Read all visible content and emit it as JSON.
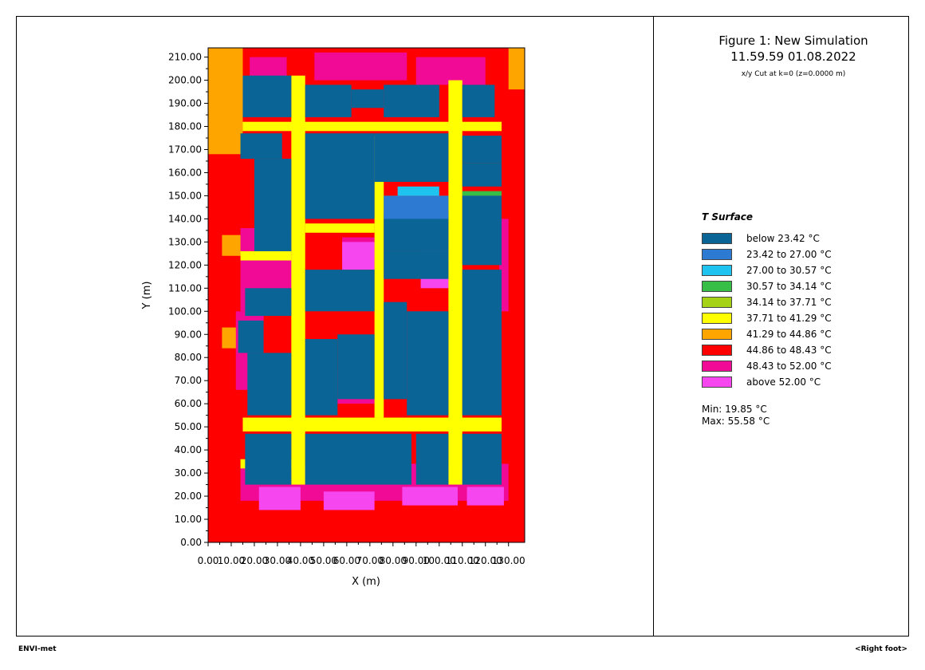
{
  "header": {
    "title": "Figure 1: New Simulation",
    "subtitle": "11.59.59 01.08.2022",
    "cut": "x/y Cut at k=0 (z=0.0000 m)"
  },
  "footer": {
    "left": "ENVI-met",
    "right": "<Right foot>"
  },
  "stats": {
    "min": "Min: 19.85 °C",
    "max": "Max: 55.58 °C"
  },
  "chart_data": {
    "type": "heatmap",
    "xlabel": "X (m)",
    "ylabel": "Y (m)",
    "xlim": [
      0,
      137
    ],
    "ylim": [
      0,
      214
    ],
    "x_ticks": [
      0,
      10,
      20,
      30,
      40,
      50,
      60,
      70,
      80,
      90,
      100,
      110,
      120,
      130
    ],
    "x_tick_labels": [
      "0.00",
      "10.00",
      "20.00",
      "30.00",
      "40.00",
      "50.00",
      "60.00",
      "70.00",
      "80.00",
      "90.00",
      "100.00",
      "110.00",
      "120.00",
      "130.00"
    ],
    "y_ticks": [
      0,
      10,
      20,
      30,
      40,
      50,
      60,
      70,
      80,
      90,
      100,
      110,
      120,
      130,
      140,
      150,
      160,
      170,
      180,
      190,
      200,
      210
    ],
    "y_tick_labels": [
      "0.00",
      "10.00",
      "20.00",
      "30.00",
      "40.00",
      "50.00",
      "60.00",
      "70.00",
      "80.00",
      "90.00",
      "100.00",
      "110.00",
      "120.00",
      "130.00",
      "140.00",
      "150.00",
      "160.00",
      "170.00",
      "180.00",
      "190.00",
      "200.00",
      "210.00"
    ],
    "legend_title": "T Surface",
    "legend_position": "right",
    "legend": [
      {
        "label": "below 23.42 °C",
        "color": "#0a6496"
      },
      {
        "label": "23.42 to 27.00 °C",
        "color": "#2d7ad2"
      },
      {
        "label": "27.00 to 30.57 °C",
        "color": "#1ec3f0"
      },
      {
        "label": "30.57 to 34.14 °C",
        "color": "#37be46"
      },
      {
        "label": "34.14 to 37.71 °C",
        "color": "#a5d214"
      },
      {
        "label": "37.71 to 41.29 °C",
        "color": "#ffff00"
      },
      {
        "label": "41.29 to 44.86 °C",
        "color": "#ffa500"
      },
      {
        "label": "44.86 to 48.43 °C",
        "color": "#ff0000"
      },
      {
        "label": "48.43 to 52.00 °C",
        "color": "#f00a96"
      },
      {
        "label": "above 52.00 °C",
        "color": "#f546f0"
      }
    ],
    "regions": [
      {
        "cls": 7,
        "x": [
          0,
          137
        ],
        "y": [
          0,
          214
        ]
      },
      {
        "cls": 6,
        "x": [
          0,
          15
        ],
        "y": [
          168,
          214
        ]
      },
      {
        "cls": 6,
        "x": [
          130,
          137
        ],
        "y": [
          196,
          214
        ]
      },
      {
        "cls": 6,
        "x": [
          6,
          15
        ],
        "y": [
          124,
          133
        ]
      },
      {
        "cls": 6,
        "x": [
          6,
          13
        ],
        "y": [
          84,
          93
        ]
      },
      {
        "cls": 8,
        "x": [
          14,
          130
        ],
        "y": [
          18,
          34
        ]
      },
      {
        "cls": 8,
        "x": [
          12,
          24
        ],
        "y": [
          66,
          100
        ]
      },
      {
        "cls": 8,
        "x": [
          14,
          38
        ],
        "y": [
          100,
          136
        ]
      },
      {
        "cls": 8,
        "x": [
          18,
          34
        ],
        "y": [
          196,
          210
        ]
      },
      {
        "cls": 8,
        "x": [
          46,
          86
        ],
        "y": [
          200,
          212
        ]
      },
      {
        "cls": 8,
        "x": [
          90,
          120
        ],
        "y": [
          198,
          210
        ]
      },
      {
        "cls": 8,
        "x": [
          126,
          130
        ],
        "y": [
          100,
          140
        ]
      },
      {
        "cls": 8,
        "x": [
          56,
          72
        ],
        "y": [
          60,
          74
        ]
      },
      {
        "cls": 8,
        "x": [
          58,
          72
        ],
        "y": [
          122,
          132
        ]
      },
      {
        "cls": 8,
        "x": [
          92,
          106
        ],
        "y": [
          122,
          136
        ]
      },
      {
        "cls": 9,
        "x": [
          22,
          40
        ],
        "y": [
          14,
          24
        ]
      },
      {
        "cls": 9,
        "x": [
          50,
          72
        ],
        "y": [
          14,
          22
        ]
      },
      {
        "cls": 9,
        "x": [
          84,
          108
        ],
        "y": [
          16,
          24
        ]
      },
      {
        "cls": 9,
        "x": [
          112,
          128
        ],
        "y": [
          16,
          24
        ]
      },
      {
        "cls": 9,
        "x": [
          58,
          72
        ],
        "y": [
          118,
          130
        ]
      },
      {
        "cls": 9,
        "x": [
          92,
          104
        ],
        "y": [
          110,
          128
        ]
      },
      {
        "cls": 5,
        "x": [
          15,
          127
        ],
        "y": [
          48,
          54
        ]
      },
      {
        "cls": 5,
        "x": [
          15,
          127
        ],
        "y": [
          178,
          182
        ]
      },
      {
        "cls": 5,
        "x": [
          36,
          42
        ],
        "y": [
          25,
          202
        ]
      },
      {
        "cls": 5,
        "x": [
          104,
          110
        ],
        "y": [
          25,
          200
        ]
      },
      {
        "cls": 5,
        "x": [
          14,
          36
        ],
        "y": [
          122,
          126
        ]
      },
      {
        "cls": 5,
        "x": [
          42,
          72
        ],
        "y": [
          134,
          138
        ]
      },
      {
        "cls": 5,
        "x": [
          14,
          36
        ],
        "y": [
          32,
          36
        ]
      },
      {
        "cls": 5,
        "x": [
          72,
          76
        ],
        "y": [
          54,
          176
        ]
      },
      {
        "cls": 4,
        "x": [
          76,
          104
        ],
        "y": [
          144,
          150
        ]
      },
      {
        "cls": 3,
        "x": [
          110,
          127
        ],
        "y": [
          150,
          152
        ]
      },
      {
        "cls": 0,
        "x": [
          16,
          36
        ],
        "y": [
          25,
          47
        ]
      },
      {
        "cls": 0,
        "x": [
          42,
          88
        ],
        "y": [
          25,
          47
        ]
      },
      {
        "cls": 0,
        "x": [
          90,
          104
        ],
        "y": [
          25,
          47
        ]
      },
      {
        "cls": 0,
        "x": [
          110,
          127
        ],
        "y": [
          25,
          47
        ]
      },
      {
        "cls": 0,
        "x": [
          17,
          36
        ],
        "y": [
          55,
          82
        ]
      },
      {
        "cls": 0,
        "x": [
          42,
          56
        ],
        "y": [
          55,
          88
        ]
      },
      {
        "cls": 0,
        "x": [
          56,
          72
        ],
        "y": [
          62,
          90
        ]
      },
      {
        "cls": 0,
        "x": [
          42,
          72
        ],
        "y": [
          100,
          118
        ]
      },
      {
        "cls": 0,
        "x": [
          16,
          36
        ],
        "y": [
          98,
          110
        ]
      },
      {
        "cls": 0,
        "x": [
          13,
          24
        ],
        "y": [
          82,
          96
        ]
      },
      {
        "cls": 0,
        "x": [
          76,
          86
        ],
        "y": [
          62,
          104
        ]
      },
      {
        "cls": 0,
        "x": [
          86,
          104
        ],
        "y": [
          55,
          100
        ]
      },
      {
        "cls": 0,
        "x": [
          76,
          104
        ],
        "y": [
          114,
          126
        ]
      },
      {
        "cls": 0,
        "x": [
          76,
          104
        ],
        "y": [
          126,
          142
        ]
      },
      {
        "cls": 1,
        "x": [
          76,
          104
        ],
        "y": [
          140,
          150
        ]
      },
      {
        "cls": 2,
        "x": [
          82,
          100
        ],
        "y": [
          150,
          154
        ]
      },
      {
        "cls": 0,
        "x": [
          110,
          127
        ],
        "y": [
          55,
          118
        ]
      },
      {
        "cls": 0,
        "x": [
          110,
          127
        ],
        "y": [
          120,
          150
        ]
      },
      {
        "cls": 0,
        "x": [
          20,
          36
        ],
        "y": [
          126,
          166
        ]
      },
      {
        "cls": 0,
        "x": [
          14,
          32
        ],
        "y": [
          166,
          177
        ]
      },
      {
        "cls": 0,
        "x": [
          42,
          72
        ],
        "y": [
          140,
          177
        ]
      },
      {
        "cls": 0,
        "x": [
          72,
          104
        ],
        "y": [
          156,
          177
        ]
      },
      {
        "cls": 0,
        "x": [
          110,
          127
        ],
        "y": [
          164,
          176
        ]
      },
      {
        "cls": 0,
        "x": [
          110,
          127
        ],
        "y": [
          154,
          164
        ]
      },
      {
        "cls": 0,
        "x": [
          15,
          36
        ],
        "y": [
          184,
          202
        ]
      },
      {
        "cls": 0,
        "x": [
          42,
          62
        ],
        "y": [
          184,
          198
        ]
      },
      {
        "cls": 0,
        "x": [
          62,
          76
        ],
        "y": [
          188,
          196
        ]
      },
      {
        "cls": 0,
        "x": [
          76,
          100
        ],
        "y": [
          184,
          198
        ]
      },
      {
        "cls": 0,
        "x": [
          110,
          124
        ],
        "y": [
          184,
          198
        ]
      }
    ]
  }
}
